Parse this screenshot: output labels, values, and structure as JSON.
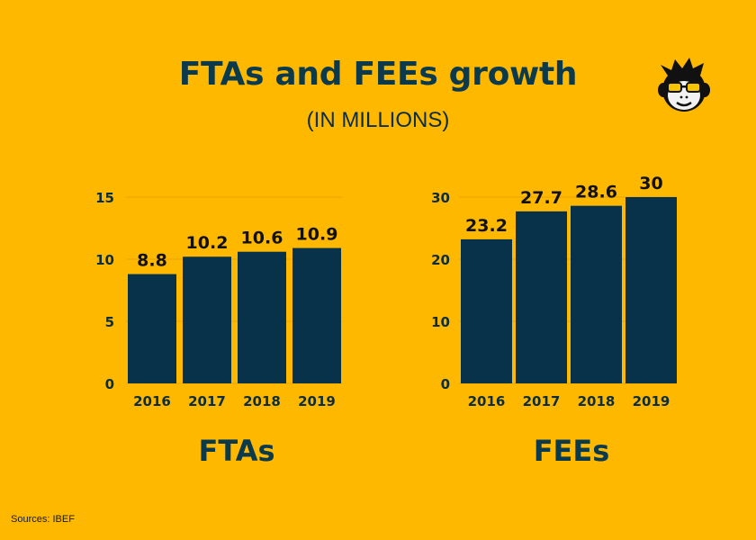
{
  "header": {
    "title": "FTAs and FEEs growth",
    "subtitle": "(IN MILLIONS)"
  },
  "logo_icon": "monkey-sunglasses-icon",
  "colors": {
    "background": "#FFB800",
    "bar": "#07324A",
    "text": "#0B2D3E",
    "grid": "#E8A400"
  },
  "footer": {
    "source": "Sources: IBEF"
  },
  "chart_data": [
    {
      "type": "bar",
      "title": "FTAs",
      "categories": [
        "2016",
        "2017",
        "2018",
        "2019"
      ],
      "values": [
        8.8,
        10.2,
        10.6,
        10.9
      ],
      "value_labels": [
        "8.8",
        "10.2",
        "10.6",
        "10.9"
      ],
      "ylim": [
        0,
        15
      ],
      "yticks": [
        0,
        5,
        10,
        15
      ],
      "grid": true
    },
    {
      "type": "bar",
      "title": "FEEs",
      "categories": [
        "2016",
        "2017",
        "2018",
        "2019"
      ],
      "values": [
        23.2,
        27.7,
        28.6,
        30
      ],
      "value_labels": [
        "23.2",
        "27.7",
        "28.6",
        "30"
      ],
      "ylim": [
        0,
        30
      ],
      "yticks": [
        0,
        10,
        20,
        30
      ],
      "grid": true
    }
  ]
}
